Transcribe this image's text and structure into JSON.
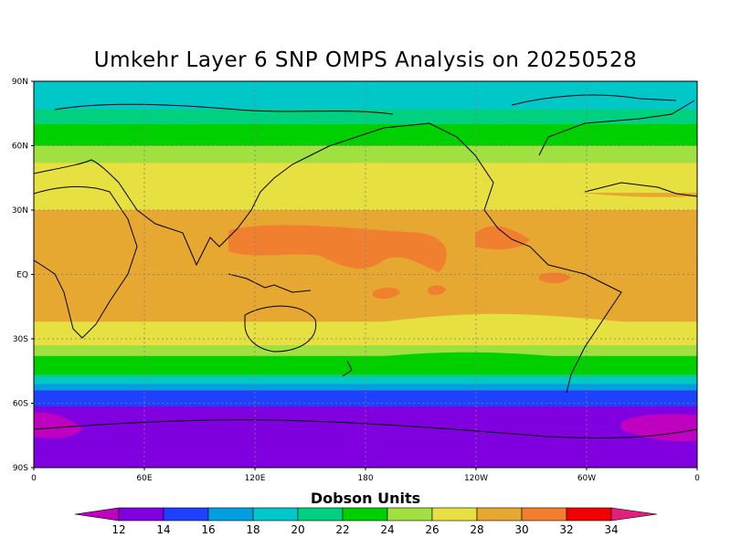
{
  "title": "Umkehr Layer 6 SNP OMPS Analysis on 20250528",
  "units_label": "Dobson Units",
  "y_axis_labels": [
    "90N",
    "60N",
    "30N",
    "EQ",
    "30S",
    "60S",
    "90S"
  ],
  "x_axis_labels": [
    "0",
    "60E",
    "120E",
    "180",
    "120W",
    "60W",
    "0"
  ],
  "colorbar": {
    "tick_labels": [
      "12",
      "14",
      "16",
      "18",
      "20",
      "22",
      "24",
      "26",
      "28",
      "30",
      "32",
      "34"
    ],
    "under_color": "#c000c0",
    "over_color": "#e0207a",
    "colors": [
      "#8000e0",
      "#2040ff",
      "#00a0e0",
      "#00c8c8",
      "#00d080",
      "#00d000",
      "#a0e040",
      "#e6e040",
      "#e6a830",
      "#f08030",
      "#f00000"
    ]
  },
  "ocean_background": "#e6a830",
  "zonal_bands": [
    {
      "from_lat": 90,
      "to_lat": 77,
      "color": "#00c8c8"
    },
    {
      "from_lat": 77,
      "to_lat": 70,
      "color": "#00d080"
    },
    {
      "from_lat": 70,
      "to_lat": 60,
      "color": "#00d000"
    },
    {
      "from_lat": 60,
      "to_lat": 52,
      "color": "#a0e040"
    },
    {
      "from_lat": 52,
      "to_lat": 38,
      "color": "#e6e040"
    },
    {
      "from_lat": 38,
      "to_lat": -22,
      "color": "#e6a830"
    },
    {
      "from_lat": -22,
      "to_lat": -33,
      "color": "#e6e040"
    },
    {
      "from_lat": -33,
      "to_lat": -38,
      "color": "#a0e040"
    },
    {
      "from_lat": -38,
      "to_lat": -45,
      "color": "#00d000"
    },
    {
      "from_lat": -45,
      "to_lat": -48,
      "color": "#00d080"
    },
    {
      "from_lat": -48,
      "to_lat": -51,
      "color": "#00c8c8"
    },
    {
      "from_lat": -51,
      "to_lat": -54,
      "color": "#00a0e0"
    },
    {
      "from_lat": -54,
      "to_lat": -60,
      "color": "#2040ff"
    },
    {
      "from_lat": -60,
      "to_lat": -90,
      "color": "#8000e0"
    }
  ],
  "map_extent": {
    "lon_min": 0,
    "lon_max": 360,
    "lat_min": -90,
    "lat_max": 90
  }
}
